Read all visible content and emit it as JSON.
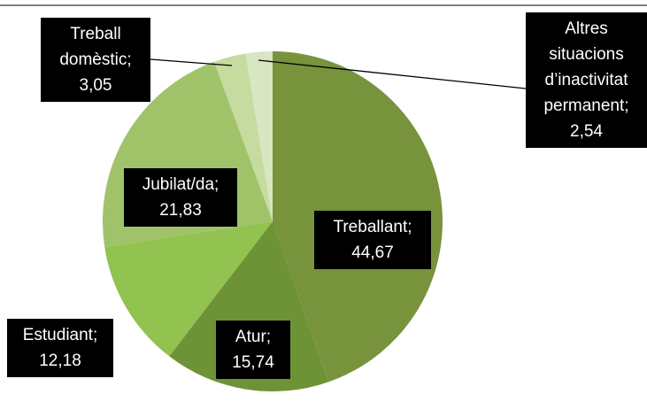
{
  "chart_data": {
    "type": "pie",
    "categories": [
      "Treballant",
      "Atur",
      "Estudiant",
      "Jubilat/da",
      "Treball domèstic",
      "Altres situacions d’inactivitat permanent"
    ],
    "values": [
      44.67,
      15.74,
      12.18,
      21.83,
      3.05,
      2.54
    ],
    "value_labels": [
      "44,67",
      "15,74",
      "12,18",
      "21,83",
      "3,05",
      "2,54"
    ],
    "label_separator": ";",
    "colors": [
      "#77933c",
      "#6e9236",
      "#92c24f",
      "#a0c36a",
      "#c5dba0",
      "#d8e6c1"
    ]
  }
}
